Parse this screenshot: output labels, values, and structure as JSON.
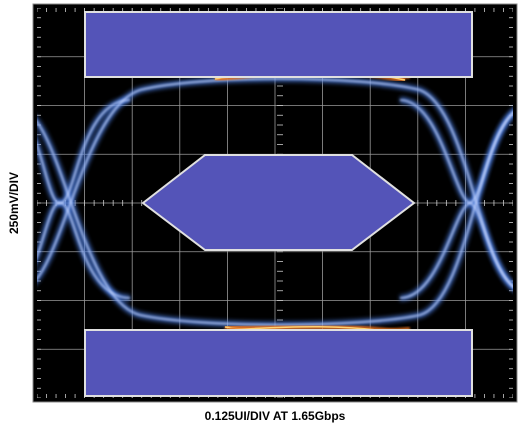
{
  "chart_data": {
    "type": "eye-diagram",
    "xlabel": "0.125UI/DIV AT 1.65Gbps",
    "ylabel": "250mV/DIV",
    "grid": true
  }
}
